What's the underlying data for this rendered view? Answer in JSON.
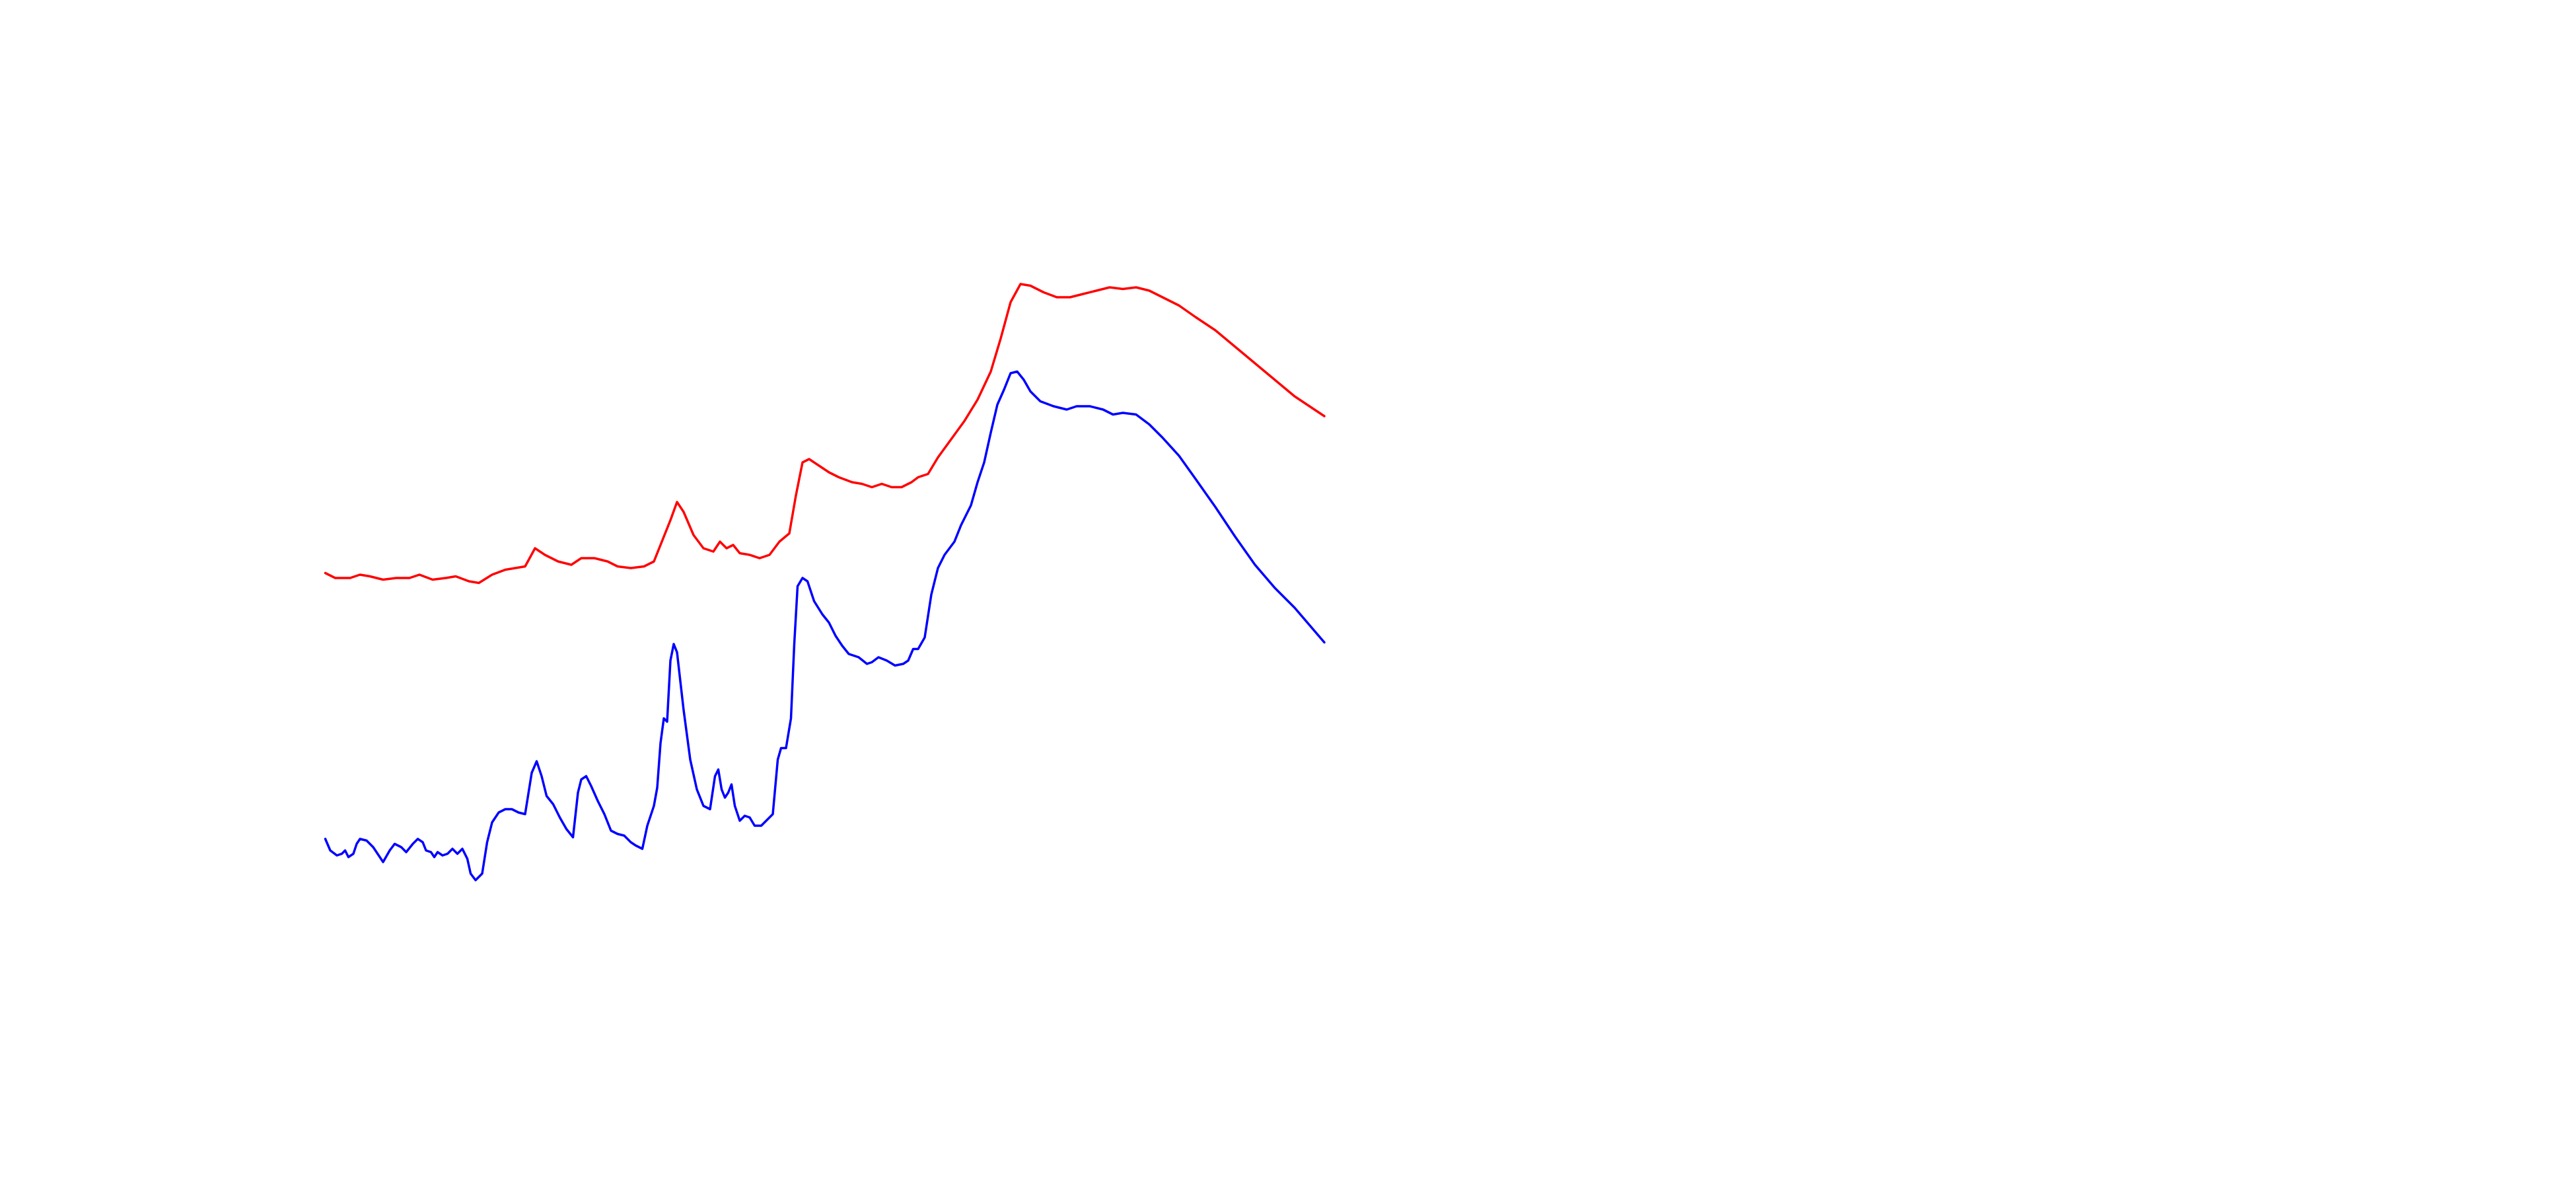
{
  "chart_data": {
    "type": "line",
    "xlim": [
      0,
      1560
    ],
    "ylim": [
      0,
      720
    ],
    "series": [
      {
        "color": "#ff0000",
        "x": [
          197,
          203,
          212,
          218,
          224,
          232,
          240,
          248,
          254,
          262,
          270,
          276,
          284,
          290,
          298,
          306,
          318,
          324,
          330,
          338,
          346,
          352,
          360,
          368,
          374,
          382,
          390,
          396,
          402,
          406,
          410,
          414,
          420,
          426,
          432,
          436,
          440,
          444,
          448,
          454,
          460,
          466,
          472,
          478,
          482,
          486,
          490,
          496,
          502,
          508,
          516,
          522,
          528,
          534,
          540,
          546,
          552,
          556,
          562,
          568,
          576,
          584,
          592,
          600,
          606,
          612,
          618,
          624,
          632,
          640,
          648,
          656,
          664,
          672,
          680,
          688,
          696,
          704,
          714,
          724,
          736,
          748,
          760,
          772,
          784,
          796,
          802
        ],
        "values": [
          373,
          370,
          370,
          372,
          371,
          369,
          370,
          370,
          372,
          369,
          370,
          371,
          368,
          367,
          372,
          375,
          377,
          388,
          384,
          380,
          378,
          382,
          382,
          380,
          377,
          376,
          377,
          380,
          395,
          405,
          416,
          410,
          396,
          388,
          386,
          392,
          388,
          390,
          385,
          384,
          382,
          384,
          392,
          397,
          420,
          440,
          442,
          438,
          434,
          431,
          428,
          427,
          425,
          427,
          425,
          425,
          428,
          431,
          433,
          443,
          454,
          465,
          478,
          495,
          515,
          537,
          548,
          547,
          543,
          540,
          540,
          542,
          544,
          546,
          545,
          546,
          544,
          540,
          535,
          528,
          520,
          510,
          500,
          490,
          480,
          472,
          468
        ]
      },
      {
        "color": "#0000ff",
        "x": [
          197,
          200,
          204,
          207,
          209,
          211,
          214,
          216,
          218,
          222,
          226,
          230,
          232,
          236,
          239,
          243,
          246,
          250,
          253,
          256,
          258,
          261,
          263,
          265,
          268,
          271,
          274,
          277,
          280,
          283,
          285,
          288,
          292,
          295,
          298,
          302,
          306,
          310,
          314,
          318,
          322,
          325,
          328,
          331,
          335,
          339,
          343,
          347,
          350,
          352,
          355,
          358,
          362,
          366,
          370,
          374,
          378,
          382,
          385,
          389,
          392,
          396,
          398,
          400,
          402,
          404,
          406,
          408,
          410,
          414,
          418,
          422,
          426,
          430,
          433,
          435,
          437,
          439,
          441,
          443,
          445,
          448,
          451,
          454,
          457,
          461,
          465,
          468,
          471,
          473,
          476,
          479,
          481,
          483,
          486,
          489,
          493,
          498,
          502,
          506,
          510,
          514,
          520,
          525,
          528,
          532,
          537,
          542,
          547,
          550,
          553,
          556,
          560,
          564,
          568,
          572,
          578,
          582,
          588,
          592,
          596,
          600,
          604,
          608,
          612,
          616,
          620,
          624,
          630,
          638,
          646,
          652,
          660,
          668,
          674,
          680,
          688,
          696,
          704,
          714,
          724,
          736,
          748,
          760,
          772,
          784,
          796,
          802
        ],
        "values": [
          212,
          205,
          202,
          203,
          205,
          201,
          203,
          209,
          212,
          211,
          207,
          201,
          198,
          205,
          209,
          207,
          204,
          209,
          212,
          210,
          205,
          204,
          201,
          204,
          202,
          203,
          206,
          203,
          206,
          200,
          191,
          187,
          191,
          210,
          222,
          228,
          230,
          230,
          228,
          227,
          252,
          259,
          250,
          238,
          233,
          225,
          218,
          213,
          240,
          248,
          250,
          244,
          235,
          227,
          217,
          215,
          214,
          210,
          208,
          206,
          220,
          232,
          243,
          270,
          285,
          283,
          320,
          330,
          325,
          290,
          260,
          242,
          232,
          230,
          250,
          254,
          242,
          237,
          240,
          245,
          232,
          223,
          226,
          225,
          220,
          220,
          224,
          227,
          260,
          267,
          267,
          285,
          330,
          365,
          370,
          368,
          356,
          348,
          343,
          335,
          329,
          324,
          322,
          318,
          319,
          322,
          320,
          317,
          318,
          320,
          327,
          327,
          334,
          360,
          376,
          384,
          392,
          402,
          414,
          428,
          440,
          458,
          475,
          484,
          494,
          495,
          490,
          483,
          477,
          474,
          472,
          474,
          474,
          472,
          469,
          470,
          469,
          463,
          455,
          444,
          430,
          413,
          395,
          378,
          364,
          352,
          338,
          331
        ]
      }
    ]
  }
}
